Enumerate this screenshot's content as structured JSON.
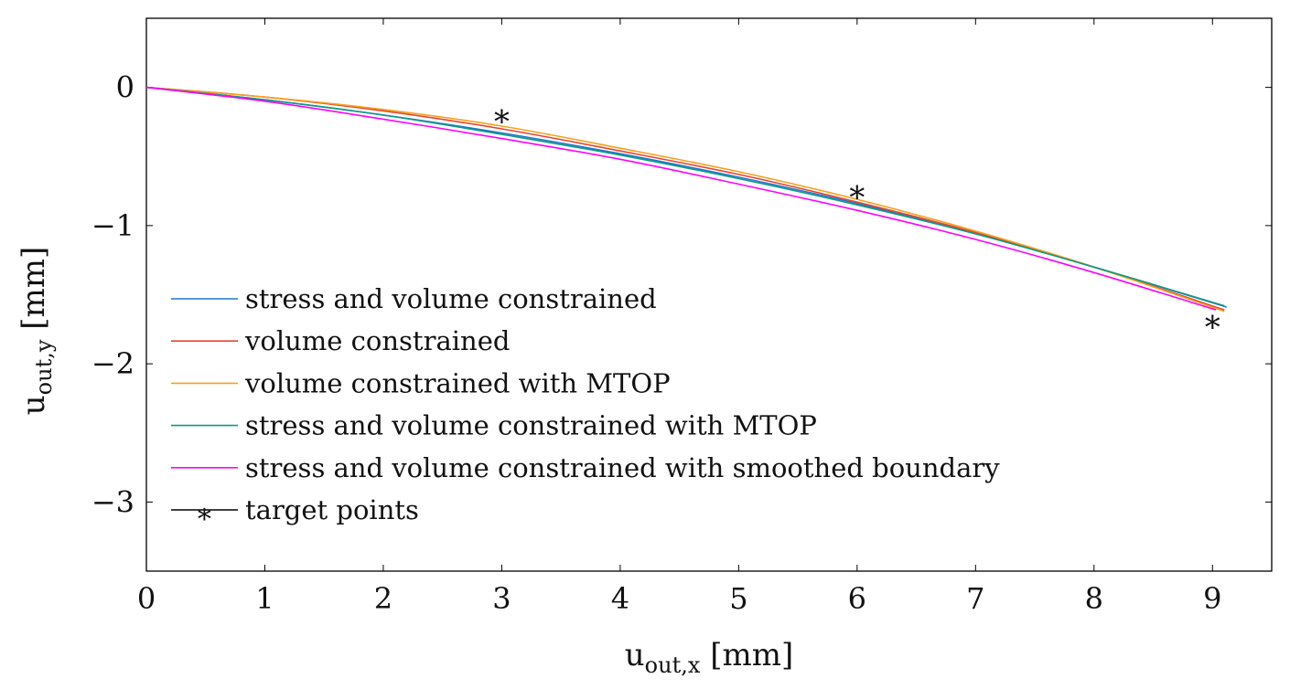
{
  "chart_data": {
    "type": "line",
    "title": "",
    "xlabel": {
      "base": "u",
      "sub": "out,x",
      "unit": " [mm]"
    },
    "ylabel": {
      "base": "u",
      "sub": "out,y",
      "unit": " [mm]"
    },
    "xlim": [
      0,
      9.5
    ],
    "ylim": [
      -3.5,
      0.5
    ],
    "xticks": [
      0,
      1,
      2,
      3,
      4,
      5,
      6,
      7,
      8,
      9
    ],
    "xtick_labels": [
      "0",
      "1",
      "2",
      "3",
      "4",
      "5",
      "6",
      "7",
      "8",
      "9"
    ],
    "yticks": [
      0,
      -1,
      -2,
      -3
    ],
    "ytick_labels": [
      "0",
      "−1",
      "−2",
      "−3"
    ],
    "legend_position": "left",
    "series": [
      {
        "name": "stress and volume constrained",
        "color": "#1f77d4",
        "x": [
          0,
          1,
          2,
          3,
          4,
          5,
          6,
          7,
          8,
          9.12
        ],
        "y": [
          0,
          -0.09,
          -0.2,
          -0.33,
          -0.48,
          -0.65,
          -0.84,
          -1.06,
          -1.3,
          -1.59
        ]
      },
      {
        "name": "volume constrained",
        "color": "#e8432e",
        "x": [
          0,
          1,
          2,
          3,
          4,
          5,
          6,
          7,
          8,
          9.1
        ],
        "y": [
          0,
          -0.07,
          -0.17,
          -0.3,
          -0.46,
          -0.63,
          -0.83,
          -1.05,
          -1.3,
          -1.61
        ]
      },
      {
        "name": "volume constrained with MTOP",
        "color": "#f5a11c",
        "x": [
          0,
          1,
          2,
          3,
          4,
          5,
          6,
          7,
          8,
          9.1
        ],
        "y": [
          0,
          -0.07,
          -0.16,
          -0.28,
          -0.44,
          -0.61,
          -0.81,
          -1.04,
          -1.3,
          -1.62
        ]
      },
      {
        "name": "stress and volume constrained with MTOP",
        "color": "#0f9a7f",
        "x": [
          0,
          1,
          2,
          3,
          4,
          5,
          6,
          7,
          8,
          9.1
        ],
        "y": [
          0,
          -0.09,
          -0.2,
          -0.34,
          -0.49,
          -0.66,
          -0.85,
          -1.06,
          -1.3,
          -1.58
        ]
      },
      {
        "name": "stress and volume constrained with smoothed boundary",
        "color": "#ff00ff",
        "x": [
          0,
          1,
          2,
          3,
          4,
          5,
          6,
          7,
          8,
          9.03
        ],
        "y": [
          0,
          -0.1,
          -0.23,
          -0.37,
          -0.52,
          -0.7,
          -0.89,
          -1.1,
          -1.34,
          -1.61
        ]
      }
    ],
    "target_points": {
      "name": "target points",
      "color": "#000000",
      "marker": "∗",
      "x": [
        3,
        6,
        9
      ],
      "y": [
        -0.18,
        -0.73,
        -1.67
      ]
    }
  }
}
